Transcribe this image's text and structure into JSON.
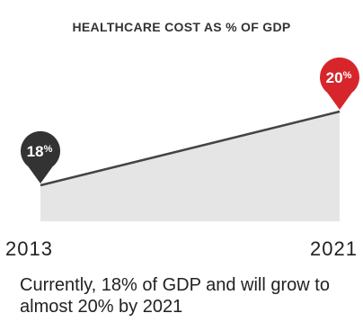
{
  "title": "HEALTHCARE COST AS % OF GDP",
  "caption": "Currently, 18% of GDP and will grow to almost 20% by 2021",
  "colors": {
    "area": "#e5e5e5",
    "line": "#444444",
    "start_pin": "#333333",
    "end_pin": "#d7262b"
  },
  "chart_data": {
    "type": "area",
    "x": [
      "2013",
      "2021"
    ],
    "values": [
      18,
      20
    ],
    "data_labels": [
      {
        "num": "18",
        "unit": "%"
      },
      {
        "num": "20",
        "unit": "%"
      }
    ],
    "title": "HEALTHCARE COST AS % OF GDP",
    "xlabel": "",
    "ylabel": "",
    "grid": false
  }
}
